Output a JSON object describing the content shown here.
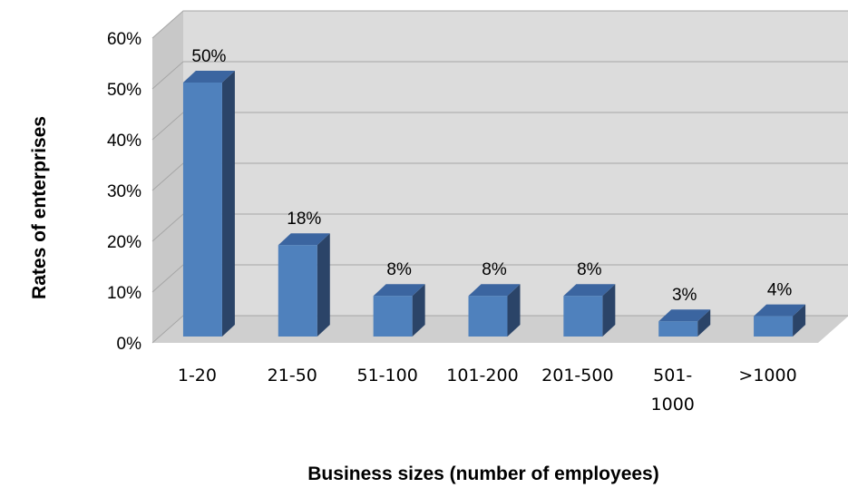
{
  "chart_data": {
    "type": "bar",
    "categories": [
      "1-20",
      "21-50",
      "51-100",
      "101-200",
      "201-500",
      "501-1000",
      ">1000"
    ],
    "category_lines": [
      [
        "1-20"
      ],
      [
        "21-50"
      ],
      [
        "51-100"
      ],
      [
        "101-200"
      ],
      [
        "201-500"
      ],
      [
        "501-",
        "1000"
      ],
      [
        ">1000"
      ]
    ],
    "values": [
      50,
      18,
      8,
      8,
      8,
      3,
      4
    ],
    "data_labels": [
      "50%",
      "18%",
      "8%",
      "8%",
      "8%",
      "3%",
      "4%"
    ],
    "y_ticks": [
      "0%",
      "10%",
      "20%",
      "30%",
      "40%",
      "50%",
      "60%"
    ],
    "ylim": [
      0,
      60
    ],
    "xlabel": "Business sizes (number of employees)",
    "ylabel": "Rates of enterprises",
    "grid": true,
    "style": "3d",
    "colors": {
      "bar_front": "#4f81bd",
      "bar_side": "#2b4468",
      "bar_top": "#3b65a0",
      "back_wall": "#dcdcdc",
      "side_wall": "#c8c8c8",
      "floor": "#cfcfcf",
      "gridline": "#a6a6a6"
    }
  }
}
